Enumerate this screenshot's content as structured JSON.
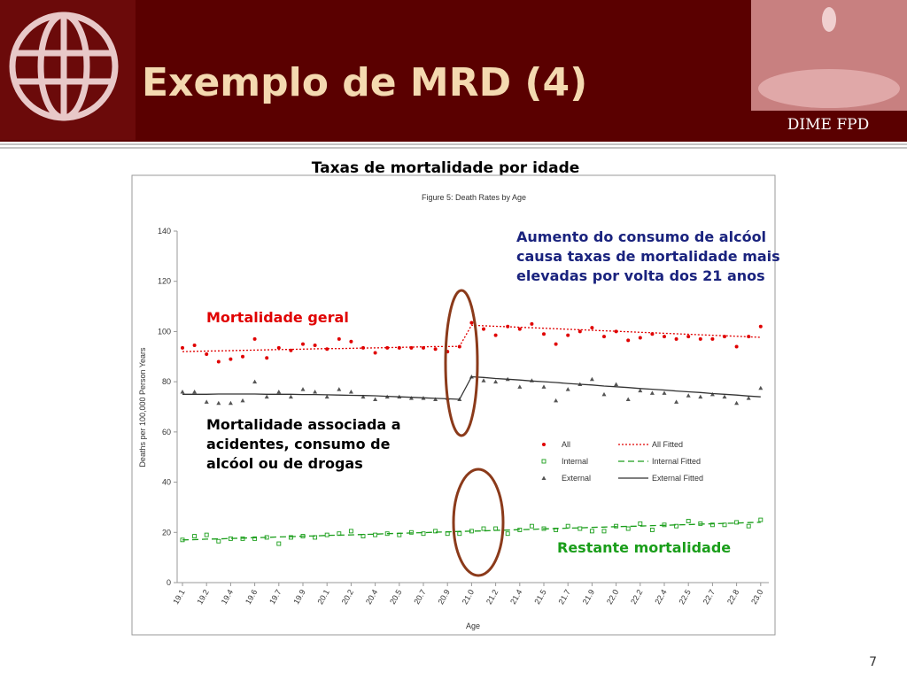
{
  "slide": {
    "title": "Exemplo de MRD (4)",
    "brand": "DIME FPD",
    "heading": "Taxas de mortalidade por idade",
    "page": "7",
    "annotations": [
      {
        "text": "Mortalidade geral",
        "color": "#e00000"
      },
      {
        "text": "Aumento do consumo de alcóol causa taxas de mortalidade mais elevadas por volta dos 21 anos",
        "color": "#1a237e"
      },
      {
        "text": "Mortalidade associada a acidentes, consumo de alcóol ou de drogas",
        "color": "#000000"
      },
      {
        "text": "Restante mortalidade",
        "color": "#1a9e1a"
      }
    ]
  },
  "chart_data": {
    "type": "line",
    "title": "Figure 5: Death Rates by Age",
    "x_label": "Age",
    "y_label": "Deaths per 100,000 Person Years",
    "categories": [
      "19.1",
      null,
      "19.2",
      null,
      "19.4",
      null,
      "19.6",
      null,
      "19.7",
      null,
      "19.9",
      null,
      "20.1",
      null,
      "20.2",
      null,
      "20.4",
      null,
      "20.5",
      null,
      "20.7",
      null,
      "20.9",
      null,
      "21.0",
      null,
      "21.2",
      null,
      "21.4",
      null,
      "21.5",
      null,
      "21.7",
      null,
      "21.9",
      null,
      "22.0",
      null,
      "22.2",
      null,
      "22.4",
      null,
      "22.5",
      null,
      "22.7",
      null,
      "22.8",
      null,
      "23.0"
    ],
    "ylim": [
      0,
      140
    ],
    "yticks": [
      0,
      20,
      40,
      60,
      80,
      100,
      120,
      140
    ],
    "series": [
      {
        "name": "All",
        "color": "#e00000",
        "marker": "circle",
        "values": [
          93.5,
          94.5,
          91,
          88,
          89,
          90,
          97,
          89.5,
          93.5,
          92.5,
          95,
          94.5,
          93,
          97,
          96,
          93.5,
          91.5,
          93.5,
          93.5,
          93.5,
          93.5,
          93,
          92,
          94,
          103.5,
          101,
          98.5,
          102,
          101,
          103,
          99,
          95,
          98.5,
          100,
          101.5,
          98,
          100,
          96.5,
          97.5,
          99,
          98,
          97,
          98,
          97,
          97,
          98,
          94,
          98,
          102
        ]
      },
      {
        "name": "All Fitted",
        "color": "#e00000",
        "line": "dotted",
        "values": [
          92.0,
          92.1,
          92.2,
          92.3,
          92.4,
          92.5,
          92.6,
          92.7,
          92.8,
          92.9,
          93.0,
          93.1,
          93.2,
          93.2,
          93.3,
          93.4,
          93.5,
          93.6,
          93.7,
          93.8,
          93.9,
          94.0,
          94.0,
          94.1,
          102.5,
          102.3,
          102.1,
          101.9,
          101.7,
          101.5,
          101.3,
          101.1,
          100.9,
          100.7,
          100.5,
          100.3,
          100.1,
          99.9,
          99.7,
          99.5,
          99.3,
          99.1,
          98.9,
          98.7,
          98.5,
          98.3,
          98.1,
          97.9,
          97.7
        ]
      },
      {
        "name": "Internal",
        "color": "#1a9e1a",
        "marker": "square",
        "values": [
          17,
          18.5,
          19,
          16.5,
          17.5,
          17.5,
          17.5,
          18,
          15.5,
          18,
          18.5,
          18,
          19,
          19.5,
          20.5,
          18.5,
          19,
          19.5,
          19,
          20,
          19.5,
          20.5,
          19.5,
          19.5,
          20.5,
          21.5,
          21.5,
          19.5,
          21,
          22.5,
          21.5,
          21,
          22.5,
          21.5,
          20.5,
          20.5,
          22.5,
          21.5,
          23.5,
          21,
          23,
          22.5,
          24.5,
          23.5,
          23,
          23,
          24,
          22.5,
          25
        ]
      },
      {
        "name": "Internal Fitted",
        "color": "#1a9e1a",
        "line": "dashed",
        "values": [
          17.0,
          17.1,
          17.3,
          17.4,
          17.6,
          17.7,
          17.9,
          18.0,
          18.2,
          18.3,
          18.5,
          18.6,
          18.8,
          18.9,
          19.0,
          19.2,
          19.3,
          19.5,
          19.6,
          19.8,
          19.9,
          20.1,
          20.2,
          20.4,
          20.5,
          20.6,
          20.8,
          20.9,
          21.1,
          21.2,
          21.4,
          21.5,
          21.7,
          21.8,
          22.0,
          22.1,
          22.3,
          22.4,
          22.5,
          22.7,
          22.8,
          23.0,
          23.1,
          23.3,
          23.4,
          23.6,
          23.7,
          23.9,
          24.0
        ]
      },
      {
        "name": "External",
        "color": "#555555",
        "marker": "triangle",
        "values": [
          76,
          76,
          72,
          71.5,
          71.5,
          72.5,
          80,
          74,
          76,
          74,
          77,
          76,
          74,
          77,
          76,
          74,
          73,
          74,
          74,
          73.5,
          73.5,
          73,
          73.5,
          73,
          82,
          80.5,
          80,
          81,
          78,
          80.5,
          78,
          72.5,
          77,
          79,
          81,
          75,
          79,
          73,
          76.5,
          75.5,
          75.5,
          72,
          74.5,
          74,
          75,
          74,
          71.5,
          73.5,
          77.5
        ]
      },
      {
        "name": "External Fitted",
        "color": "#333333",
        "line": "solid",
        "values": [
          75.0,
          75.0,
          75.0,
          75.1,
          75.1,
          75.1,
          75.1,
          75.0,
          75.0,
          75.0,
          74.9,
          74.9,
          74.8,
          74.7,
          74.6,
          74.5,
          74.4,
          74.2,
          74.0,
          73.8,
          73.6,
          73.4,
          73.2,
          73.0,
          82.0,
          81.7,
          81.3,
          81.0,
          80.7,
          80.3,
          80.0,
          79.7,
          79.3,
          79.0,
          78.7,
          78.3,
          78.0,
          77.7,
          77.3,
          77.0,
          76.7,
          76.3,
          76.0,
          75.7,
          75.3,
          75.0,
          74.7,
          74.3,
          74.0
        ]
      }
    ]
  }
}
